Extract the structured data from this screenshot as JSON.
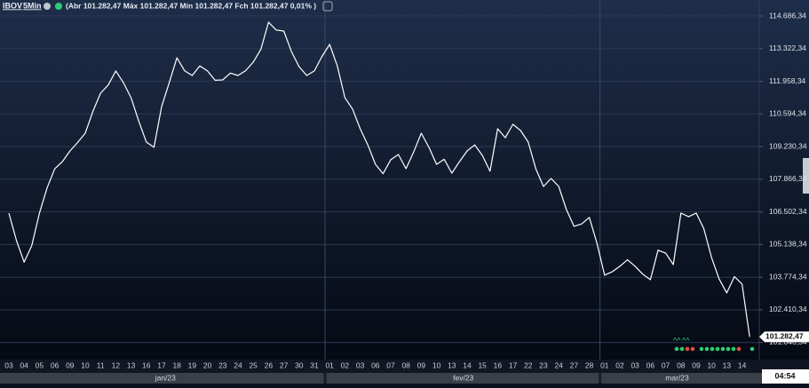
{
  "chart_data": {
    "type": "line",
    "title": "IBOV",
    "subtitle": "5Min",
    "ohlc_text": "(Abr 101.282,47 Máx 101.282,47 Mín 101.282,47 Fch 101.282,47 0,01% )",
    "last_price_label": "101.282,47",
    "clock": "04:54",
    "months": [
      "jan/23",
      "fev/23",
      "mar/23"
    ],
    "categories": [
      "03",
      null,
      "04",
      null,
      "05",
      null,
      "06",
      null,
      "09",
      null,
      "10",
      null,
      "11",
      null,
      "12",
      null,
      "13",
      null,
      "16",
      null,
      "17",
      null,
      "18",
      null,
      "19",
      null,
      "20",
      null,
      "23",
      null,
      "24",
      null,
      "25",
      null,
      "26",
      null,
      "27",
      null,
      "30",
      null,
      "31",
      null,
      "01",
      null,
      "02",
      null,
      "03",
      null,
      "06",
      null,
      "07",
      null,
      "08",
      null,
      "09",
      null,
      "10",
      null,
      "13",
      null,
      "14",
      null,
      "15",
      null,
      "16",
      null,
      "17",
      null,
      "22",
      null,
      "23",
      null,
      "24",
      null,
      "27",
      null,
      "28",
      null,
      "01",
      null,
      "02",
      null,
      "03",
      null,
      "06",
      null,
      "07",
      null,
      "08",
      null,
      "09",
      null,
      "10",
      null,
      "13",
      null,
      "14",
      null
    ],
    "series": [
      {
        "color": "#ffffff",
        "values": [
          106450,
          105300,
          104400,
          105100,
          106450,
          107500,
          108300,
          108600,
          109050,
          109400,
          109790,
          110700,
          111460,
          111800,
          112390,
          111900,
          111270,
          110300,
          109420,
          109200,
          110900,
          111900,
          112940,
          112400,
          112200,
          112600,
          112390,
          112000,
          112016,
          112300,
          112200,
          112400,
          112760,
          113300,
          114426,
          114100,
          114056,
          113200,
          112570,
          112200,
          112390,
          113000,
          113500,
          112600,
          111270,
          110800,
          109975,
          109300,
          108490,
          108100,
          108680,
          108900,
          108306,
          109000,
          109790,
          109200,
          108490,
          108700,
          108120,
          108600,
          109050,
          109300,
          108860,
          108200,
          109975,
          109600,
          110160,
          109900,
          109420,
          108300,
          107565,
          107900,
          107565,
          106600,
          105900,
          106000,
          106270,
          105200,
          103860,
          104000,
          104230,
          104500,
          104230,
          103900,
          103670,
          104900,
          104780,
          104300,
          106452,
          106300,
          106452,
          105800,
          104600,
          103700,
          103116,
          103800,
          103490,
          101282
        ]
      }
    ],
    "ylim": [
      100332,
      115354
    ],
    "yticks": [
      {
        "value": 114686.34,
        "label": "114.686,34"
      },
      {
        "value": 113322.34,
        "label": "113.322,34"
      },
      {
        "value": 111958.34,
        "label": "111.958,34"
      },
      {
        "value": 110594.34,
        "label": "110.594,34"
      },
      {
        "value": 109230.34,
        "label": "109.230,34"
      },
      {
        "value": 107866.34,
        "label": "107.866,34"
      },
      {
        "value": 106502.34,
        "label": "106.502,34"
      },
      {
        "value": 105138.34,
        "label": "105.138,34"
      },
      {
        "value": 103774.34,
        "label": "103.774,34"
      },
      {
        "value": 102410.34,
        "label": "102.410,34"
      },
      {
        "value": 101046.34,
        "label": "101.046,34"
      }
    ],
    "grid": true
  }
}
